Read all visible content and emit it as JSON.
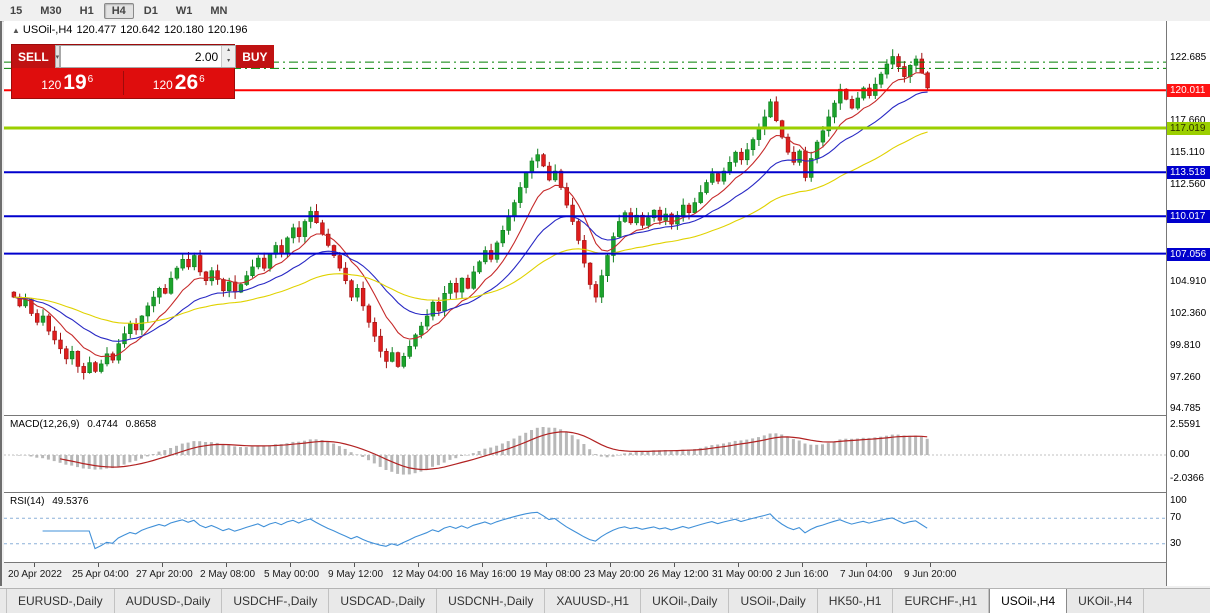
{
  "icons": {
    "collapse": "▲",
    "dropdown": "▾",
    "spin_up": "▴",
    "spin_down": "▾"
  },
  "toolbar": {
    "timeframes": [
      "15",
      "M30",
      "H1",
      "H4",
      "D1",
      "W1",
      "MN"
    ],
    "active_timeframe": "H4"
  },
  "header": {
    "symbol_title": "USOil-,H4",
    "open": "120.477",
    "high": "120.642",
    "low": "120.180",
    "close": "120.196"
  },
  "trade_panel": {
    "sell_label": "SELL",
    "buy_label": "BUY",
    "volume": "2.00",
    "sell_price_prefix": "120",
    "sell_price_big": "19",
    "sell_price_sup": "6",
    "buy_price_prefix": "120",
    "buy_price_big": "26",
    "buy_price_sup": "6"
  },
  "chart_data": {
    "type": "candlestick",
    "symbol": "USOil-",
    "timeframe": "H4",
    "first_open": 104.0,
    "closes": [
      103.6,
      102.9,
      103.4,
      102.3,
      101.6,
      102.1,
      100.9,
      100.2,
      99.5,
      98.7,
      99.3,
      98.1,
      97.6,
      98.4,
      97.7,
      98.3,
      99.1,
      98.6,
      99.9,
      100.7,
      101.5,
      101.0,
      102.1,
      102.9,
      103.6,
      104.3,
      103.9,
      105.1,
      105.9,
      106.6,
      106.0,
      106.9,
      105.6,
      104.9,
      105.7,
      105.0,
      104.1,
      104.8,
      104.0,
      104.6,
      105.3,
      106.0,
      106.7,
      105.9,
      107.0,
      107.7,
      107.1,
      108.3,
      109.1,
      108.4,
      109.6,
      110.4,
      109.5,
      108.6,
      107.7,
      106.9,
      105.9,
      104.9,
      103.6,
      104.3,
      102.9,
      101.6,
      100.5,
      99.3,
      98.5,
      99.2,
      98.1,
      98.9,
      99.7,
      100.6,
      101.3,
      102.1,
      103.2,
      102.5,
      103.9,
      104.7,
      104.0,
      105.1,
      104.3,
      105.6,
      106.4,
      107.3,
      106.6,
      107.9,
      108.9,
      110.0,
      111.1,
      112.3,
      113.5,
      114.4,
      114.9,
      114.0,
      112.9,
      113.6,
      112.3,
      110.9,
      109.6,
      108.1,
      106.3,
      104.6,
      103.6,
      105.3,
      106.9,
      108.4,
      109.6,
      110.3,
      109.5,
      110.1,
      109.3,
      109.9,
      110.5,
      109.7,
      110.2,
      109.4,
      110.1,
      110.9,
      110.3,
      111.1,
      111.9,
      112.7,
      113.4,
      112.8,
      113.6,
      114.3,
      115.1,
      114.5,
      115.3,
      116.1,
      117.0,
      117.9,
      119.1,
      117.6,
      116.3,
      115.1,
      114.3,
      115.2,
      113.1,
      114.6,
      115.9,
      116.8,
      117.9,
      119.0,
      120.1,
      119.3,
      118.6,
      119.4,
      120.2,
      119.6,
      120.5,
      121.3,
      122.1,
      122.7,
      121.9,
      121.1,
      122.0,
      122.5,
      121.4,
      120.2
    ],
    "price_axis": {
      "min": 94.6,
      "max": 124.8,
      "plain_ticks": [
        "122.685",
        "117.660",
        "115.110",
        "112.560",
        "104.910",
        "102.360",
        "99.810",
        "97.260",
        "94.785"
      ]
    },
    "levels": [
      {
        "price": 122.25,
        "style": "dashdot",
        "color": "#008000",
        "width": 1,
        "label": ""
      },
      {
        "price": 121.75,
        "style": "dashdot",
        "color": "#008000",
        "width": 1,
        "label": ""
      },
      {
        "price": 120.011,
        "style": "solid",
        "color": "#ff0000",
        "width": 2,
        "label": "120.011",
        "label_bg": "#ff1414",
        "label_fg": "#ffffff"
      },
      {
        "price": 117.019,
        "style": "solid",
        "color": "#9bcf00",
        "width": 3,
        "label": "117.019",
        "label_bg": "#9bcf00",
        "label_fg": "#2d2d00"
      },
      {
        "price": 113.518,
        "style": "solid",
        "color": "#0000cd",
        "width": 2,
        "label": "113.518",
        "label_bg": "#0000cd",
        "label_fg": "#ffffff"
      },
      {
        "price": 110.017,
        "style": "solid",
        "color": "#0000cd",
        "width": 2,
        "label": "110.017",
        "label_bg": "#0000cd",
        "label_fg": "#ffffff"
      },
      {
        "price": 107.056,
        "style": "solid",
        "color": "#0000cd",
        "width": 2,
        "label": "107.056",
        "label_bg": "#0000cd",
        "label_fg": "#ffffff"
      }
    ],
    "x_labels": [
      "20 Apr 2022",
      "25 Apr 04:00",
      "27 Apr 20:00",
      "2 May 08:00",
      "5 May 00:00",
      "9 May 12:00",
      "12 May 04:00",
      "16 May 16:00",
      "19 May 08:00",
      "23 May 20:00",
      "26 May 12:00",
      "31 May 00:00",
      "2 Jun 16:00",
      "7 Jun 04:00",
      "9 Jun 20:00"
    ],
    "moving_averages": [
      {
        "period": 9,
        "color": "#c62a2a"
      },
      {
        "period": 21,
        "color": "#2929c4"
      },
      {
        "period": 50,
        "color": "#e0d200"
      }
    ],
    "indicators": {
      "macd": {
        "label": "MACD(12,26,9)",
        "value_main": "0.4744",
        "value_signal": "0.8658",
        "fast": 12,
        "slow": 26,
        "signal": 9,
        "axis_labels": [
          "2.5591",
          "0.00",
          "-2.0366"
        ],
        "bar_color": "#b8b8b8",
        "line_color": "#b22222"
      },
      "rsi": {
        "label": "RSI(14)",
        "value": "49.5376",
        "period": 14,
        "axis_labels": [
          "100",
          "70",
          "30"
        ],
        "levels": [
          70,
          30
        ],
        "line_color": "#4090d8",
        "level_color": "#8cb0d8"
      }
    },
    "colors": {
      "up": "#1ca32c",
      "up_stroke": "#0e7d1e",
      "down": "#df1d1d",
      "down_stroke": "#9e0f0f"
    }
  },
  "tabs": [
    {
      "label": "EURUSD-,Daily",
      "active": false
    },
    {
      "label": "AUDUSD-,Daily",
      "active": false
    },
    {
      "label": "USDCHF-,Daily",
      "active": false
    },
    {
      "label": "USDCAD-,Daily",
      "active": false
    },
    {
      "label": "USDCNH-,Daily",
      "active": false
    },
    {
      "label": "XAUUSD-,H1",
      "active": false
    },
    {
      "label": "UKOil-,Daily",
      "active": false
    },
    {
      "label": "USOil-,Daily",
      "active": false
    },
    {
      "label": "HK50-,H1",
      "active": false
    },
    {
      "label": "EURCHF-,H1",
      "active": false
    },
    {
      "label": "USOil-,H4",
      "active": true
    },
    {
      "label": "UKOil-,H4",
      "active": false
    }
  ]
}
